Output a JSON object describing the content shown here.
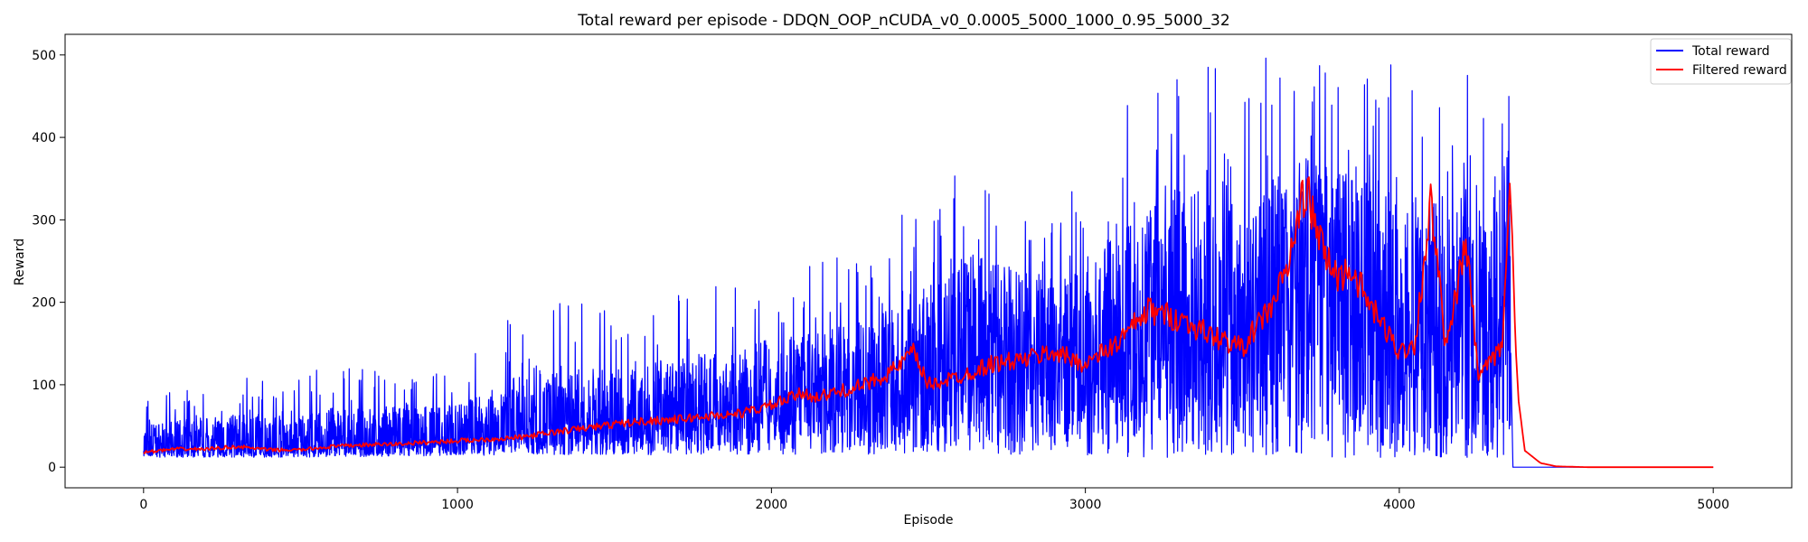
{
  "chart_data": {
    "type": "line",
    "title": "Total reward per episode - DDQN_OOP_nCUDA_v0_0.0005_5000_1000_0.95_5000_32",
    "xlabel": "Episode",
    "ylabel": "Reward",
    "xlim": [
      -250,
      5250
    ],
    "ylim": [
      -25,
      525
    ],
    "xticks": [
      0,
      1000,
      2000,
      3000,
      4000,
      5000
    ],
    "xtick_labels": [
      "0",
      "1000",
      "2000",
      "3000",
      "4000",
      "5000"
    ],
    "yticks": [
      0,
      100,
      200,
      300,
      400,
      500
    ],
    "ytick_labels": [
      "0",
      "100",
      "200",
      "300",
      "400",
      "500"
    ],
    "grid": false,
    "legend_position": "top-right",
    "series": [
      {
        "name": "Total reward",
        "color": "#0000ff",
        "x": [
          0,
          100,
          200,
          300,
          400,
          500,
          600,
          700,
          800,
          900,
          1000,
          1100,
          1200,
          1250,
          1300,
          1400,
          1500,
          1600,
          1700,
          1800,
          1900,
          2000,
          2100,
          2200,
          2300,
          2400,
          2500,
          2600,
          2650,
          2700,
          2800,
          2900,
          3000,
          3100,
          3150,
          3200,
          3300,
          3400,
          3500,
          3600,
          3650,
          3700,
          3800,
          3900,
          4000,
          4050,
          4100,
          4150,
          4200,
          4250,
          4300,
          4330,
          4350,
          4360,
          4400,
          4500,
          4600,
          4700,
          4800,
          4900,
          5000
        ],
        "values": [
          20,
          22,
          21,
          23,
          22,
          22,
          24,
          26,
          28,
          30,
          32,
          35,
          38,
          40,
          42,
          45,
          48,
          52,
          56,
          60,
          65,
          70,
          78,
          85,
          92,
          100,
          105,
          110,
          115,
          120,
          125,
          130,
          135,
          140,
          145,
          160,
          175,
          165,
          160,
          200,
          230,
          250,
          220,
          190,
          160,
          170,
          200,
          160,
          190,
          130,
          120,
          170,
          300,
          0,
          0,
          0,
          0,
          0,
          0,
          0,
          0
        ],
        "variability": [
          {
            "x": 0,
            "low": 12,
            "high": 85
          },
          {
            "x": 500,
            "low": 12,
            "high": 120
          },
          {
            "x": 1000,
            "low": 14,
            "high": 120
          },
          {
            "x": 1250,
            "low": 15,
            "high": 212
          },
          {
            "x": 1500,
            "low": 15,
            "high": 190
          },
          {
            "x": 1800,
            "low": 15,
            "high": 220
          },
          {
            "x": 2000,
            "low": 15,
            "high": 240
          },
          {
            "x": 2300,
            "low": 15,
            "high": 260
          },
          {
            "x": 2650,
            "low": 15,
            "high": 410
          },
          {
            "x": 2800,
            "low": 15,
            "high": 350
          },
          {
            "x": 3000,
            "low": 15,
            "high": 340
          },
          {
            "x": 3150,
            "low": 12,
            "high": 500
          },
          {
            "x": 3400,
            "low": 12,
            "high": 500
          },
          {
            "x": 3600,
            "low": 12,
            "high": 500
          },
          {
            "x": 3800,
            "low": 12,
            "high": 500
          },
          {
            "x": 4000,
            "low": 12,
            "high": 500
          },
          {
            "x": 4200,
            "low": 12,
            "high": 500
          },
          {
            "x": 4350,
            "low": 12,
            "high": 500
          },
          {
            "x": 4360,
            "low": 0,
            "high": 0
          },
          {
            "x": 5000,
            "low": 0,
            "high": 0
          }
        ]
      },
      {
        "name": "Filtered reward",
        "color": "#ff0000",
        "x": [
          0,
          100,
          200,
          300,
          400,
          500,
          600,
          700,
          800,
          900,
          1000,
          1100,
          1200,
          1300,
          1400,
          1500,
          1600,
          1700,
          1800,
          1900,
          2000,
          2100,
          2150,
          2200,
          2300,
          2400,
          2450,
          2500,
          2600,
          2700,
          2800,
          2900,
          3000,
          3100,
          3200,
          3300,
          3400,
          3500,
          3600,
          3650,
          3700,
          3750,
          3800,
          3850,
          3900,
          4000,
          4050,
          4100,
          4150,
          4200,
          4220,
          4250,
          4300,
          4330,
          4350,
          4360,
          4370,
          4380,
          4400,
          4450,
          4500,
          4600,
          4700,
          4800,
          4900,
          5000
        ],
        "values": [
          18,
          22,
          22,
          25,
          21,
          21,
          25,
          27,
          28,
          30,
          32,
          34,
          36,
          42,
          47,
          52,
          56,
          58,
          62,
          65,
          75,
          90,
          85,
          90,
          100,
          120,
          140,
          100,
          110,
          125,
          130,
          140,
          125,
          150,
          190,
          180,
          160,
          145,
          200,
          250,
          340,
          270,
          230,
          240,
          200,
          140,
          150,
          320,
          140,
          250,
          260,
          110,
          130,
          150,
          360,
          280,
          150,
          80,
          20,
          5,
          1,
          0,
          0,
          0,
          0,
          0
        ]
      }
    ]
  }
}
